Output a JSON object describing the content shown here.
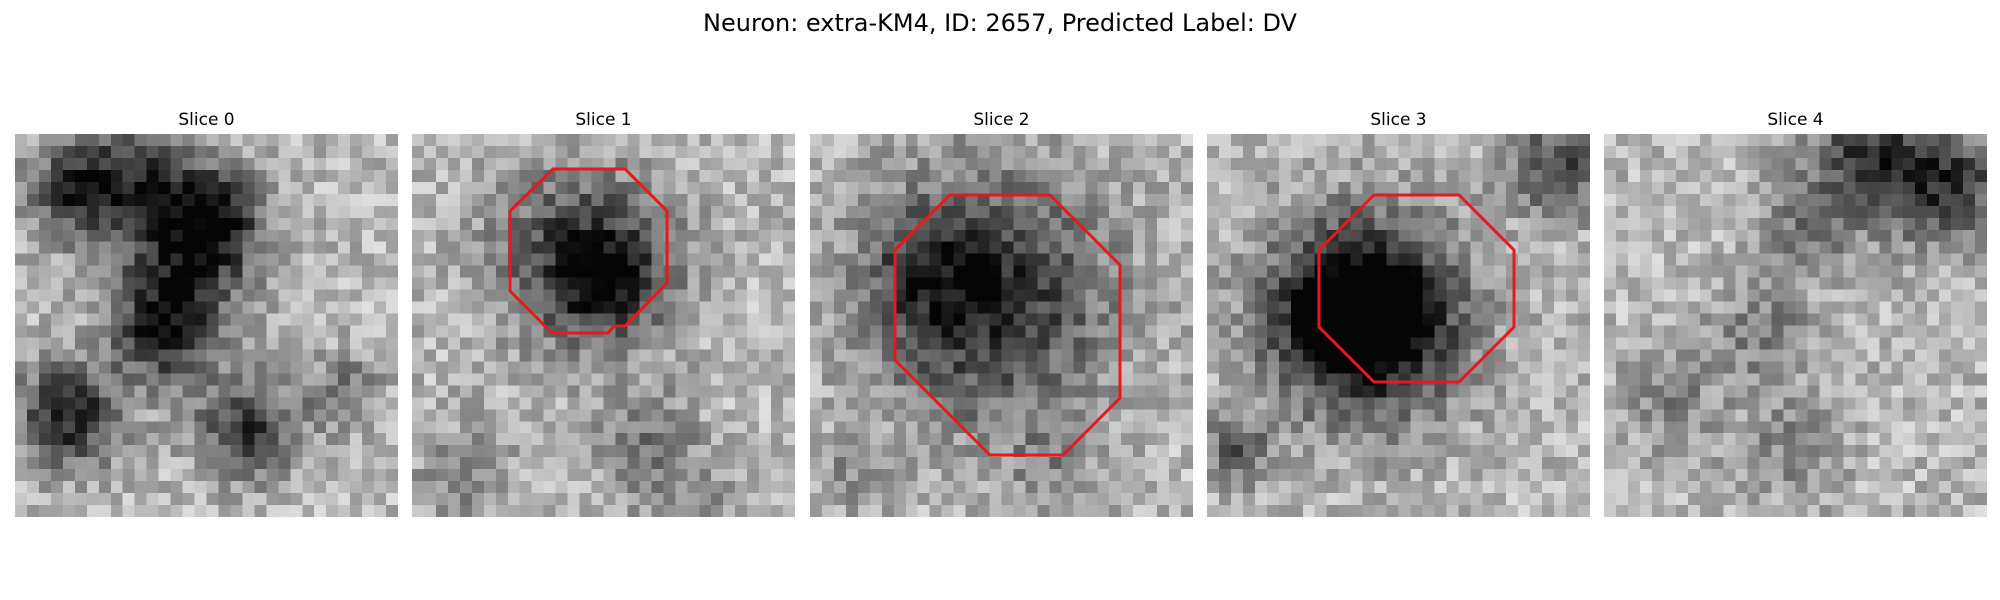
{
  "figure": {
    "title": "Neuron: extra-KM4, ID: 2657, Predicted Label: DV"
  },
  "panels": [
    {
      "title": "Slice 0",
      "has_outline": false,
      "outline_color": "#e41a1c"
    },
    {
      "title": "Slice 1",
      "has_outline": true,
      "outline_color": "#e41a1c"
    },
    {
      "title": "Slice 2",
      "has_outline": true,
      "outline_color": "#e41a1c"
    },
    {
      "title": "Slice 3",
      "has_outline": true,
      "outline_color": "#e41a1c"
    },
    {
      "title": "Slice 4",
      "has_outline": false,
      "outline_color": "#e41a1c"
    }
  ],
  "colormap": "gray"
}
